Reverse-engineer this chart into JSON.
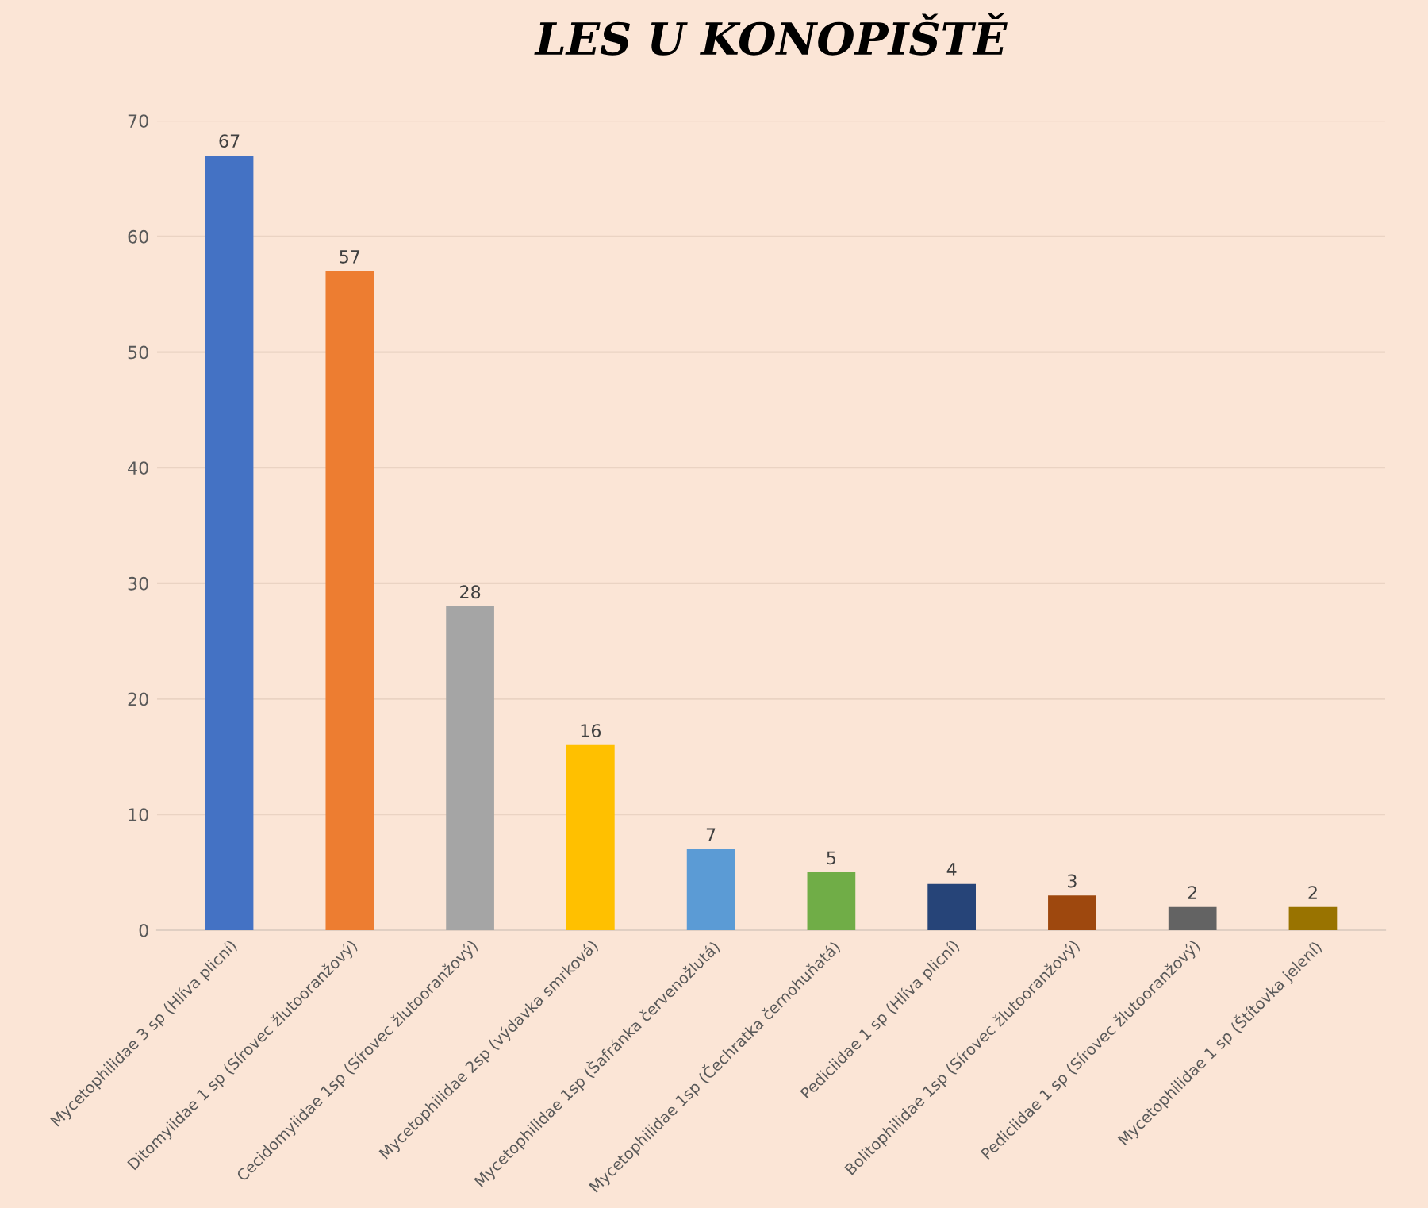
{
  "chart_data": {
    "type": "bar",
    "title": "LES U KONOPIŠTĚ",
    "categories": [
      "Mycetophilidae 3 sp (Hlíva plicní)",
      "Ditomyiidae 1 sp (Sírovec žlutooranžový)",
      "Cecidomyiidae 1sp (Sírovec žlutooranžový)",
      "Mycetophilidae 2sp (výdavka smrková)",
      "Mycetophilidae 1sp (Šafránka červenožlutá)",
      "Mycetophilidae 1sp (Čechratka černohuňatá)",
      "Pediciidae 1 sp (Hlíva plicní)",
      "Bolitophilidae 1sp (Sírovec žlutooranžový)",
      "Pediciidae 1 sp (Sírovec žlutooranžový)",
      "Mycetophilidae 1 sp (Štítovka jelení)"
    ],
    "values": [
      67,
      57,
      28,
      16,
      7,
      5,
      4,
      3,
      2,
      2
    ],
    "colors": [
      "#4472c4",
      "#ed7d31",
      "#a5a5a5",
      "#ffc000",
      "#5b9bd5",
      "#70ad47",
      "#264478",
      "#9e480e",
      "#636363",
      "#997300"
    ],
    "ylim": [
      0,
      70
    ],
    "yticks": [
      0,
      10,
      20,
      30,
      40,
      50,
      60,
      70
    ],
    "grid": "y",
    "data_labels": true
  }
}
